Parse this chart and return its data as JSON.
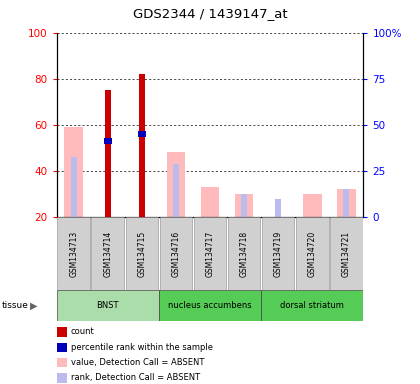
{
  "title": "GDS2344 / 1439147_at",
  "samples": [
    "GSM134713",
    "GSM134714",
    "GSM134715",
    "GSM134716",
    "GSM134717",
    "GSM134718",
    "GSM134719",
    "GSM134720",
    "GSM134721"
  ],
  "value_absent": [
    59,
    0,
    0,
    48,
    33,
    30,
    0,
    30,
    32
  ],
  "rank_absent": [
    46,
    0,
    0,
    43,
    0,
    30,
    28,
    0,
    32
  ],
  "count_present": [
    0,
    75,
    82,
    0,
    0,
    0,
    0,
    0,
    0
  ],
  "percentile_present": [
    0,
    53,
    56,
    0,
    0,
    0,
    0,
    0,
    0
  ],
  "tissue_groups": [
    {
      "label": "BNST",
      "start": 0,
      "end": 3,
      "color": "#aaeaaa"
    },
    {
      "label": "nucleus accumbens",
      "start": 3,
      "end": 6,
      "color": "#55dd55"
    },
    {
      "label": "dorsal striatum",
      "start": 6,
      "end": 9,
      "color": "#55dd55"
    }
  ],
  "ylim_left": [
    20,
    100
  ],
  "ylim_right": [
    0,
    100
  ],
  "y_ticks_left": [
    20,
    40,
    60,
    80,
    100
  ],
  "y_ticks_right": [
    0,
    25,
    50,
    75,
    100
  ],
  "y_tick_right_labels": [
    "0",
    "25",
    "50",
    "75",
    "100%"
  ],
  "color_count": "#cc0000",
  "color_percentile": "#0000bb",
  "color_value_absent": "#ffbbbb",
  "color_rank_absent": "#bbbbee",
  "legend_items": [
    {
      "color": "#cc0000",
      "label": "count"
    },
    {
      "color": "#0000bb",
      "label": "percentile rank within the sample"
    },
    {
      "color": "#ffbbbb",
      "label": "value, Detection Call = ABSENT"
    },
    {
      "color": "#bbbbee",
      "label": "rank, Detection Call = ABSENT"
    }
  ]
}
